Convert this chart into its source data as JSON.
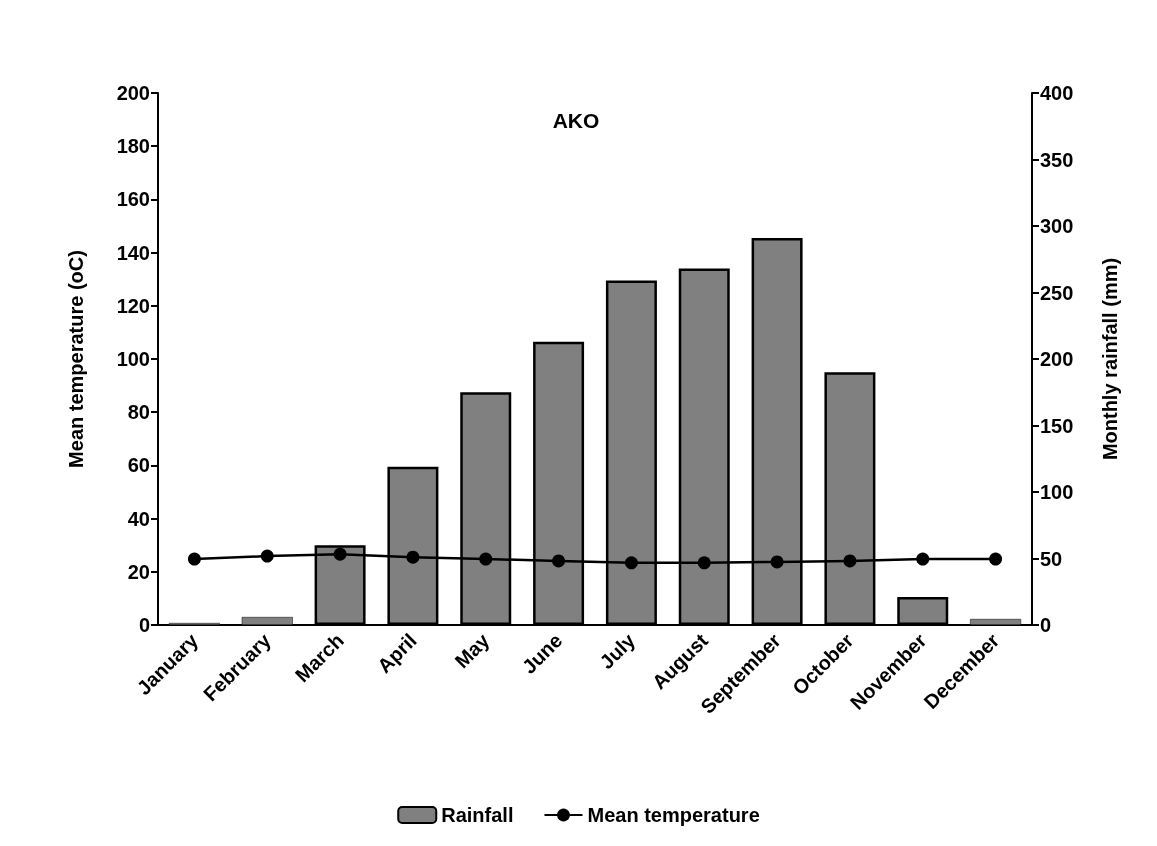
{
  "chart_data": {
    "type": "bar",
    "title": "AKO",
    "ylabel": "Mean temperature (oC)",
    "y2label": "Monthly rainfall (mm)",
    "categories": [
      "January",
      "February",
      "March",
      "April",
      "May",
      "June",
      "July",
      "August",
      "September",
      "October",
      "November",
      "December"
    ],
    "series": [
      {
        "name": "Rainfall",
        "axis": "y2",
        "color": "#808080",
        "values": [
          1.5,
          6,
          60,
          119,
          175,
          213,
          259,
          268,
          291,
          190,
          21,
          4.5
        ]
      },
      {
        "name": "Mean temperature",
        "type": "line",
        "color": "#000000",
        "marker": "circle",
        "line_style": "solid",
        "values": [
          24.8,
          25.9,
          26.6,
          25.5,
          24.8,
          24.1,
          23.4,
          23.4,
          23.7,
          24.1,
          24.8,
          24.8
        ]
      }
    ],
    "ylim": [
      0,
      200
    ],
    "yticks": [
      0,
      20,
      40,
      60,
      80,
      100,
      120,
      140,
      160,
      180,
      200
    ],
    "y2lim": [
      0,
      400
    ],
    "y2ticks": [
      0,
      50,
      100,
      150,
      200,
      250,
      300,
      350,
      400
    ],
    "grid": false,
    "legend": "bottom"
  }
}
